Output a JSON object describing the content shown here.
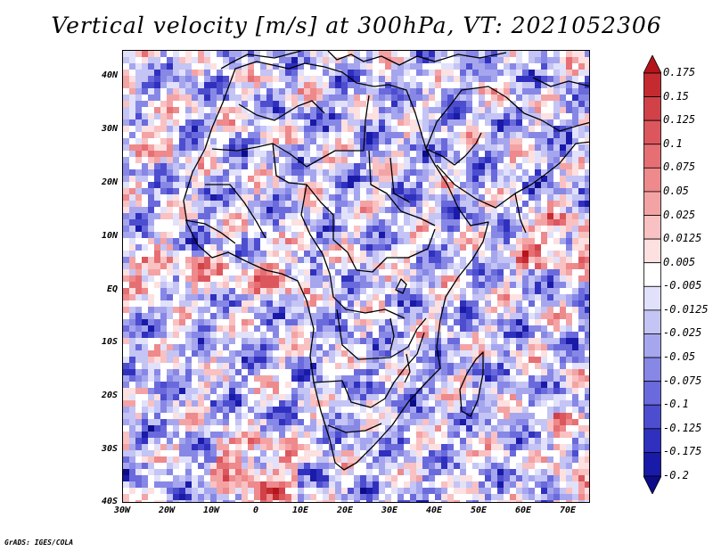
{
  "title": "Vertical velocity [m/s] at 300hPa, VT: 2021052306",
  "footer": "GrADS: IGES/COLA",
  "map": {
    "lat_labels": [
      "40N",
      "30N",
      "20N",
      "10N",
      "EQ",
      "10S",
      "20S",
      "30S",
      "40S"
    ],
    "lon_labels": [
      "30W",
      "20W",
      "10W",
      "0",
      "10E",
      "20E",
      "30E",
      "40E",
      "50E",
      "60E",
      "70E"
    ],
    "lat_range": [
      -40,
      45
    ],
    "lon_range": [
      -30,
      75
    ]
  },
  "colorbar": {
    "labels": [
      "0.175",
      "0.15",
      "0.125",
      "0.1",
      "0.075",
      "0.05",
      "0.025",
      "0.0125",
      "0.005",
      "-0.005",
      "-0.0125",
      "-0.025",
      "-0.05",
      "-0.075",
      "-0.1",
      "-0.125",
      "-0.175",
      "-0.2"
    ],
    "colors": [
      "#b4151b",
      "#c42b31",
      "#d14148",
      "#dc575d",
      "#e66f74",
      "#ee898c",
      "#f4a3a5",
      "#f9c1c2",
      "#fde0e0",
      "#ffffff",
      "#e1e1fb",
      "#c4c4f5",
      "#a6a6ee",
      "#8787e6",
      "#6a6adc",
      "#4d4dcf",
      "#3030bf",
      "#1a1aa8",
      "#0c0c88"
    ]
  }
}
